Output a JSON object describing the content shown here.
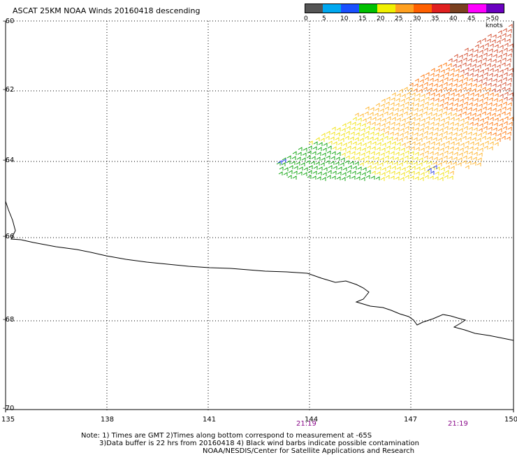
{
  "title": "ASCAT 25KM NOAA Winds 20160418 descending",
  "legend": {
    "labels": [
      "0",
      "5",
      "10",
      "15",
      "20",
      "25",
      "30",
      "35",
      "40",
      "45",
      ">50 knots"
    ],
    "colors": [
      "#555555",
      "#00a8f0",
      "#1a50ff",
      "#00c000",
      "#f0f000",
      "#ffa020",
      "#ff6000",
      "#e02020",
      "#7a4020",
      "#ff00ff",
      "#6a00c0"
    ]
  },
  "axes": {
    "lat_labels": [
      "-60",
      "-62",
      "-64",
      "-66",
      "-68",
      "-70"
    ],
    "lon_labels": [
      "135",
      "138",
      "141",
      "144",
      "147",
      "150"
    ]
  },
  "times": [
    "21:19",
    "21:19"
  ],
  "notes": {
    "line1": "Note: 1) Times are GMT 2)Times along bottom correspond to measurement at -65S",
    "line2": "3)Data buffer is 22 hrs from 20160418 4) Black wind barbs indicate possible contamination",
    "line3": "NOAA/NESDIS/Center for Satellite Applications and Research"
  }
}
